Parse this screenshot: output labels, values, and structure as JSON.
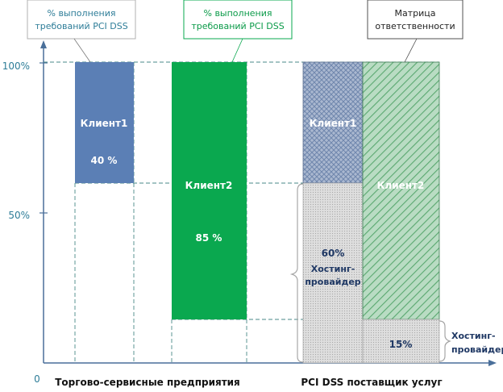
{
  "axis": {
    "y_ticks": [
      "100%",
      "50%"
    ],
    "origin": "0"
  },
  "callouts": {
    "pct_blue": [
      "% выполнения",
      "требований PCI DSS"
    ],
    "pct_green": [
      "% выполнения",
      "требований PCI DSS"
    ],
    "matrix": [
      "Матрица",
      "ответственности"
    ]
  },
  "bars": {
    "client1": {
      "label": "Клиент1",
      "value": "40 %"
    },
    "client2": {
      "label": "Клиент2",
      "value": "85 %"
    }
  },
  "provider": {
    "client1_label": "Клиент1",
    "client2_label": "Клиент2",
    "hosting_pct": "60%",
    "hosting_label": [
      "Хостинг-",
      "провайдер"
    ],
    "hosting2_pct": "15%",
    "hosting2_side_label": [
      "Хостинг-",
      "провайдер"
    ]
  },
  "categories": {
    "merchants": "Торгово-сервисные предприятия",
    "providers": "PCI DSS поставщик услуг"
  },
  "colors": {
    "blue": "#5b7fb5",
    "green": "#0aa84f",
    "axis": "#4a6f9a",
    "teal_text": "#2e7d98",
    "green_text": "#0a9a48",
    "dark_text": "#1f3864"
  }
}
